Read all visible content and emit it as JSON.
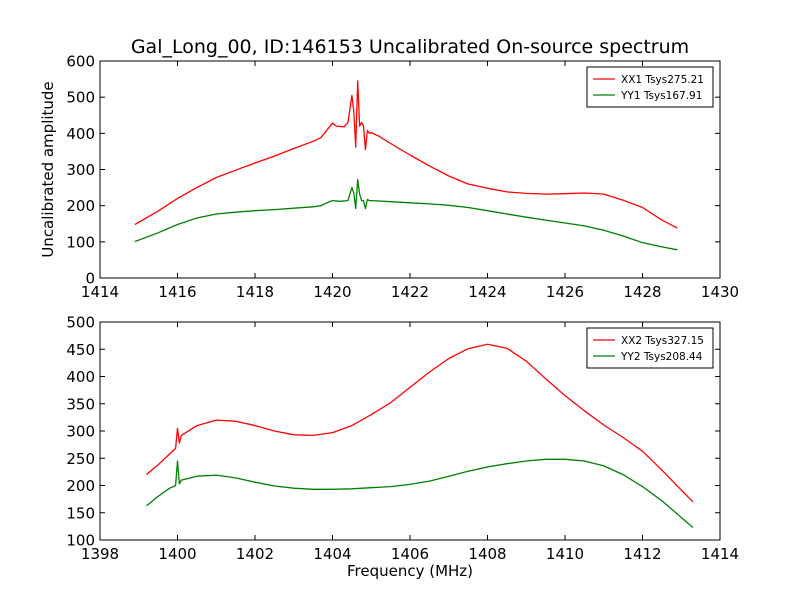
{
  "figure_title": "Gal_Long_00, ID:146153 Uncalibrated On-source spectrum",
  "chart_data": [
    {
      "type": "line",
      "title": "Gal_Long_00, ID:146153 Uncalibrated On-source spectrum",
      "xlabel": "",
      "ylabel": "Uncalibrated amplitude",
      "xlim": [
        1414,
        1430
      ],
      "ylim": [
        0,
        600
      ],
      "xticks": [
        1414,
        1416,
        1418,
        1420,
        1422,
        1424,
        1426,
        1428,
        1430
      ],
      "yticks": [
        0,
        100,
        200,
        300,
        400,
        500,
        600
      ],
      "grid": false,
      "legend_position": "top-right",
      "series": [
        {
          "name": "XX1 Tsys275.21",
          "color": "#ff0000",
          "x": [
            1414.9,
            1415.5,
            1416,
            1416.5,
            1417,
            1417.5,
            1418,
            1418.5,
            1419,
            1419.5,
            1419.7,
            1419.9,
            1420.0,
            1420.1,
            1420.3,
            1420.4,
            1420.5,
            1420.55,
            1420.6,
            1420.65,
            1420.7,
            1420.75,
            1420.8,
            1420.85,
            1420.9,
            1420.95,
            1421.0,
            1421.2,
            1421.5,
            1422,
            1422.5,
            1423,
            1423.5,
            1424,
            1424.5,
            1425,
            1425.5,
            1426,
            1426.5,
            1427,
            1427.5,
            1428,
            1428.5,
            1428.9
          ],
          "y": [
            148,
            185,
            220,
            250,
            278,
            298,
            318,
            337,
            358,
            378,
            388,
            415,
            428,
            420,
            418,
            430,
            505,
            460,
            362,
            545,
            420,
            430,
            420,
            355,
            408,
            400,
            402,
            392,
            372,
            340,
            310,
            282,
            260,
            248,
            238,
            234,
            232,
            233,
            235,
            232,
            215,
            195,
            160,
            138
          ]
        },
        {
          "name": "YY1 Tsys167.91",
          "color": "#008000",
          "x": [
            1414.9,
            1415.5,
            1416,
            1416.5,
            1417,
            1417.5,
            1418,
            1418.5,
            1419,
            1419.5,
            1419.7,
            1419.9,
            1420.0,
            1420.2,
            1420.4,
            1420.5,
            1420.55,
            1420.6,
            1420.65,
            1420.7,
            1420.75,
            1420.8,
            1420.85,
            1420.9,
            1420.95,
            1421.0,
            1421.5,
            1422,
            1422.5,
            1423,
            1423.5,
            1424,
            1424.5,
            1425,
            1425.5,
            1426,
            1426.5,
            1427,
            1427.5,
            1428,
            1428.5,
            1428.9
          ],
          "y": [
            101,
            125,
            148,
            166,
            177,
            182,
            186,
            189,
            193,
            197,
            200,
            210,
            214,
            212,
            214,
            250,
            235,
            192,
            272,
            232,
            214,
            214,
            192,
            217,
            214,
            214,
            211,
            208,
            205,
            201,
            195,
            186,
            177,
            168,
            160,
            152,
            144,
            132,
            116,
            98,
            86,
            78
          ]
        }
      ]
    },
    {
      "type": "line",
      "title": "",
      "xlabel": "Frequency (MHz)",
      "ylabel": "",
      "xlim": [
        1398,
        1414
      ],
      "ylim": [
        100,
        500
      ],
      "xticks": [
        1398,
        1400,
        1402,
        1404,
        1406,
        1408,
        1410,
        1412,
        1414
      ],
      "yticks": [
        100,
        150,
        200,
        250,
        300,
        350,
        400,
        450,
        500
      ],
      "grid": false,
      "legend_position": "top-right",
      "series": [
        {
          "name": "XX2 Tsys327.15",
          "color": "#ff0000",
          "x": [
            1399.2,
            1399.5,
            1399.8,
            1399.95,
            1400.0,
            1400.05,
            1400.1,
            1400.5,
            1401,
            1401.5,
            1402,
            1402.5,
            1403,
            1403.5,
            1404,
            1404.5,
            1405,
            1405.5,
            1406,
            1406.5,
            1407,
            1407.5,
            1408,
            1408.5,
            1409,
            1409.5,
            1410,
            1410.5,
            1411,
            1411.5,
            1412,
            1412.5,
            1413.3
          ],
          "y": [
            220,
            238,
            258,
            268,
            305,
            278,
            292,
            310,
            320,
            318,
            310,
            300,
            293,
            292,
            297,
            310,
            330,
            352,
            380,
            408,
            433,
            451,
            459,
            452,
            428,
            396,
            365,
            337,
            311,
            288,
            263,
            228,
            170
          ]
        },
        {
          "name": "YY2 Tsys208.44",
          "color": "#008000",
          "x": [
            1399.2,
            1399.5,
            1399.8,
            1399.95,
            1400.0,
            1400.05,
            1400.1,
            1400.5,
            1401,
            1401.5,
            1402,
            1402.5,
            1403,
            1403.5,
            1404,
            1404.5,
            1405,
            1405.5,
            1406,
            1406.5,
            1407,
            1407.5,
            1408,
            1408.5,
            1409,
            1409.5,
            1410,
            1410.5,
            1411,
            1411.5,
            1412,
            1412.5,
            1413.3
          ],
          "y": [
            163,
            180,
            195,
            200,
            245,
            203,
            210,
            217,
            219,
            214,
            206,
            199,
            195,
            193,
            193,
            194,
            196,
            198,
            202,
            208,
            217,
            226,
            234,
            240,
            245,
            248,
            248,
            245,
            236,
            220,
            198,
            172,
            123
          ]
        }
      ]
    }
  ]
}
